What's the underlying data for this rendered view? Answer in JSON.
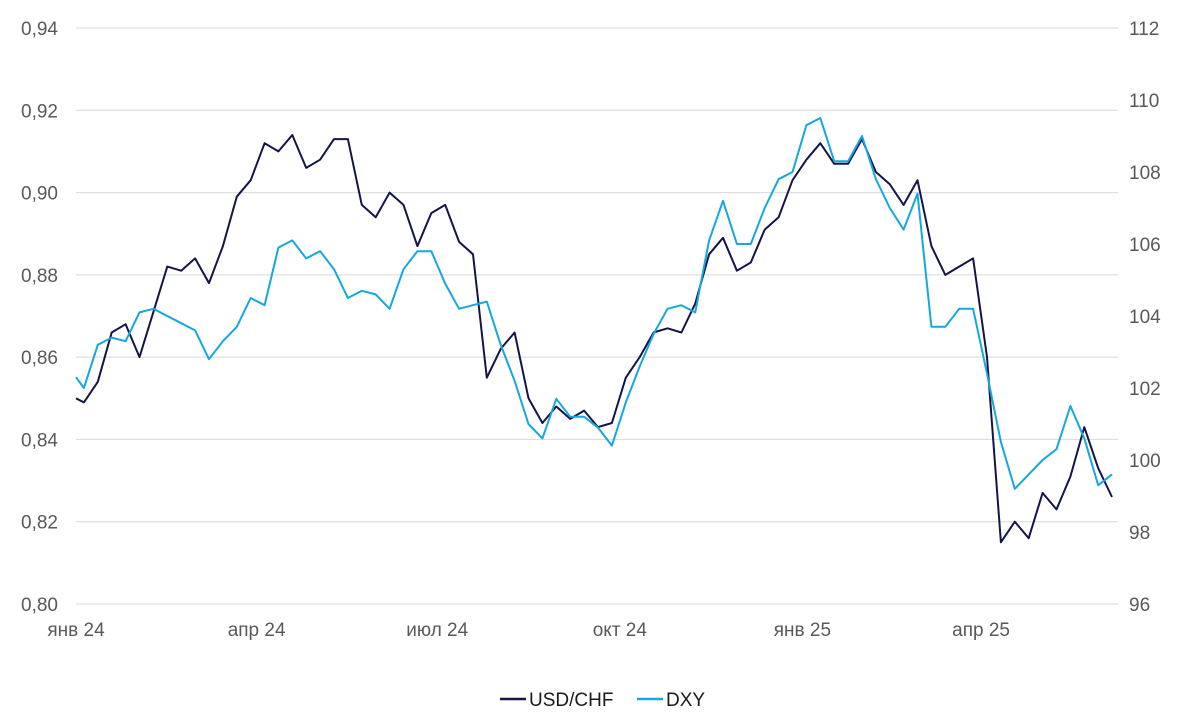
{
  "chart_data": {
    "type": "line",
    "title": "",
    "xlabel": "",
    "ylabel_left": "",
    "ylabel_right": "",
    "x_ticks": [
      "янв 24",
      "апр 24",
      "июл 24",
      "окт 24",
      "янв 25",
      "апр 25"
    ],
    "y_left": {
      "range": [
        0.8,
        0.94
      ],
      "ticks": [
        "0,80",
        "0,82",
        "0,84",
        "0,86",
        "0,88",
        "0,90",
        "0,92",
        "0,94"
      ]
    },
    "y_right": {
      "range": [
        96,
        112
      ],
      "ticks": [
        "96",
        "98",
        "100",
        "102",
        "104",
        "106",
        "108",
        "110",
        "112"
      ]
    },
    "grid": "horizontal",
    "legend_position": "bottom-center",
    "series": [
      {
        "name": "USD/CHF",
        "axis": "left",
        "color": "#13154a",
        "x": [
          "2024-01-01",
          "2024-01-05",
          "2024-01-12",
          "2024-01-19",
          "2024-01-26",
          "2024-02-02",
          "2024-02-09",
          "2024-02-16",
          "2024-02-23",
          "2024-03-01",
          "2024-03-08",
          "2024-03-15",
          "2024-03-22",
          "2024-03-29",
          "2024-04-05",
          "2024-04-12",
          "2024-04-19",
          "2024-04-26",
          "2024-05-03",
          "2024-05-10",
          "2024-05-17",
          "2024-05-24",
          "2024-05-31",
          "2024-06-07",
          "2024-06-14",
          "2024-06-21",
          "2024-06-28",
          "2024-07-05",
          "2024-07-12",
          "2024-07-19",
          "2024-07-26",
          "2024-08-02",
          "2024-08-09",
          "2024-08-16",
          "2024-08-23",
          "2024-08-30",
          "2024-09-06",
          "2024-09-13",
          "2024-09-20",
          "2024-09-27",
          "2024-10-04",
          "2024-10-11",
          "2024-10-18",
          "2024-10-25",
          "2024-11-01",
          "2024-11-08",
          "2024-11-15",
          "2024-11-22",
          "2024-11-29",
          "2024-12-06",
          "2024-12-13",
          "2024-12-20",
          "2024-12-27",
          "2025-01-03",
          "2025-01-10",
          "2025-01-17",
          "2025-01-24",
          "2025-01-31",
          "2025-02-07",
          "2025-02-14",
          "2025-02-21",
          "2025-02-28",
          "2025-03-07",
          "2025-03-14",
          "2025-03-21",
          "2025-03-28",
          "2025-04-04",
          "2025-04-11",
          "2025-04-18",
          "2025-04-25",
          "2025-05-02",
          "2025-05-09",
          "2025-05-16",
          "2025-05-23",
          "2025-05-30",
          "2025-06-06"
        ],
        "values": [
          0.85,
          0.849,
          0.854,
          0.866,
          0.868,
          0.86,
          0.871,
          0.882,
          0.881,
          0.884,
          0.878,
          0.887,
          0.899,
          0.903,
          0.912,
          0.91,
          0.914,
          0.906,
          0.908,
          0.913,
          0.913,
          0.897,
          0.894,
          0.9,
          0.897,
          0.887,
          0.895,
          0.897,
          0.888,
          0.885,
          0.855,
          0.862,
          0.866,
          0.85,
          0.844,
          0.848,
          0.845,
          0.847,
          0.843,
          0.844,
          0.855,
          0.86,
          0.866,
          0.867,
          0.866,
          0.873,
          0.885,
          0.889,
          0.881,
          0.883,
          0.891,
          0.894,
          0.903,
          0.908,
          0.912,
          0.907,
          0.907,
          0.913,
          0.905,
          0.902,
          0.897,
          0.903,
          0.887,
          0.88,
          0.882,
          0.884,
          0.86,
          0.815,
          0.82,
          0.816,
          0.827,
          0.823,
          0.831,
          0.843,
          0.833,
          0.826
        ]
      },
      {
        "name": "DXY",
        "axis": "right",
        "color": "#14a7e0",
        "x": [
          "2024-01-01",
          "2024-01-05",
          "2024-01-12",
          "2024-01-19",
          "2024-01-26",
          "2024-02-02",
          "2024-02-09",
          "2024-02-16",
          "2024-02-23",
          "2024-03-01",
          "2024-03-08",
          "2024-03-15",
          "2024-03-22",
          "2024-03-29",
          "2024-04-05",
          "2024-04-12",
          "2024-04-19",
          "2024-04-26",
          "2024-05-03",
          "2024-05-10",
          "2024-05-17",
          "2024-05-24",
          "2024-05-31",
          "2024-06-07",
          "2024-06-14",
          "2024-06-21",
          "2024-06-28",
          "2024-07-05",
          "2024-07-12",
          "2024-07-19",
          "2024-07-26",
          "2024-08-02",
          "2024-08-09",
          "2024-08-16",
          "2024-08-23",
          "2024-08-30",
          "2024-09-06",
          "2024-09-13",
          "2024-09-20",
          "2024-09-27",
          "2024-10-04",
          "2024-10-11",
          "2024-10-18",
          "2024-10-25",
          "2024-11-01",
          "2024-11-08",
          "2024-11-15",
          "2024-11-22",
          "2024-11-29",
          "2024-12-06",
          "2024-12-13",
          "2024-12-20",
          "2024-12-27",
          "2025-01-03",
          "2025-01-10",
          "2025-01-17",
          "2025-01-24",
          "2025-01-31",
          "2025-02-07",
          "2025-02-14",
          "2025-02-21",
          "2025-02-28",
          "2025-03-07",
          "2025-03-14",
          "2025-03-21",
          "2025-03-28",
          "2025-04-04",
          "2025-04-11",
          "2025-04-18",
          "2025-04-25",
          "2025-05-02",
          "2025-05-09",
          "2025-05-16",
          "2025-05-23",
          "2025-05-30",
          "2025-06-06"
        ],
        "values": [
          102.3,
          102.0,
          103.2,
          103.4,
          103.3,
          104.1,
          104.2,
          104.0,
          103.8,
          103.6,
          102.8,
          103.3,
          103.7,
          104.5,
          104.3,
          105.9,
          106.1,
          105.6,
          105.8,
          105.3,
          104.5,
          104.7,
          104.6,
          104.2,
          105.3,
          105.8,
          105.8,
          104.9,
          104.2,
          104.3,
          104.4,
          103.2,
          102.2,
          101.0,
          100.6,
          101.7,
          101.2,
          101.2,
          100.9,
          100.4,
          101.6,
          102.6,
          103.5,
          104.2,
          104.3,
          104.1,
          106.1,
          107.2,
          106.0,
          106.0,
          107.0,
          107.8,
          108.0,
          109.3,
          109.5,
          108.3,
          108.3,
          109.0,
          107.8,
          107.0,
          106.4,
          107.4,
          103.7,
          103.7,
          104.2,
          104.2,
          102.4,
          100.5,
          99.2,
          99.6,
          100.0,
          100.3,
          101.5,
          100.6,
          99.3,
          99.6
        ]
      }
    ]
  }
}
